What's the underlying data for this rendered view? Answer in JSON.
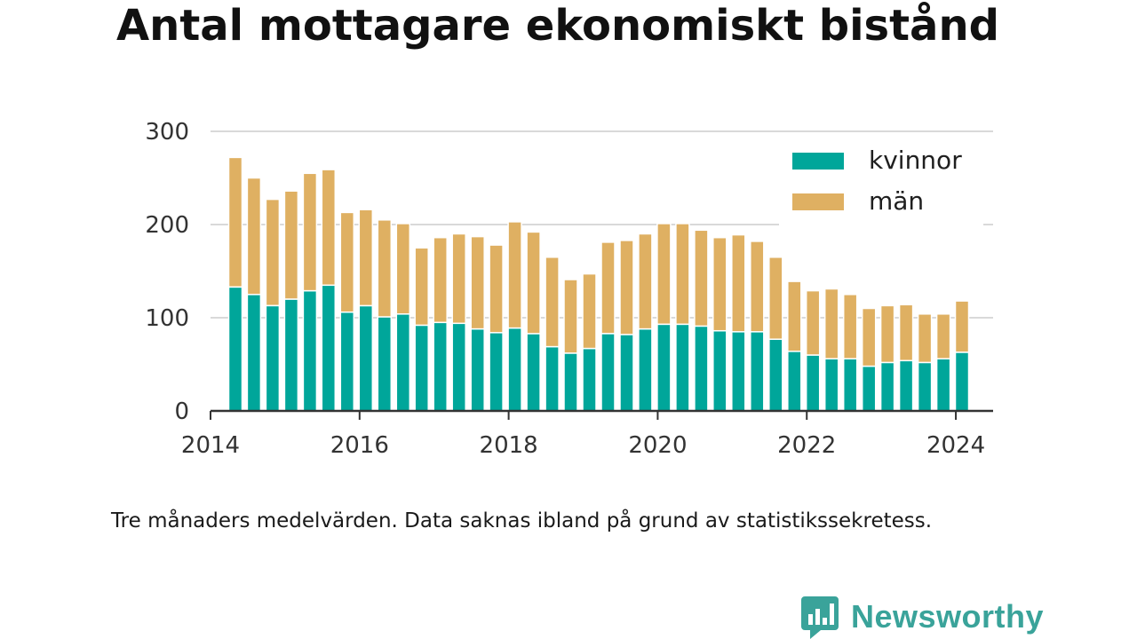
{
  "title": "Antal mottagare ekonomiskt bistånd",
  "note": "Tre månaders medelvärden. Data saknas ibland på grund av statistikssekretess.",
  "brand": {
    "name": "Newsworthy",
    "color": "#3aa39a"
  },
  "colors": {
    "kvinnor": "#00a69a",
    "man": "#dfb062",
    "grid": "#d9d9d9",
    "axis": "#333333"
  },
  "chart_data": {
    "type": "bar",
    "stacked": true,
    "title": "Antal mottagare ekonomiskt bistånd",
    "xlabel": "",
    "ylabel": "",
    "ylim": [
      0,
      300
    ],
    "yticks": [
      0,
      100,
      200,
      300
    ],
    "xticks": [
      "2014",
      "2016",
      "2018",
      "2020",
      "2022",
      "2024"
    ],
    "xlim": [
      "2014-01",
      "2024-07"
    ],
    "legend_position": "top-right",
    "categories": [
      "2014-05",
      "2014-08",
      "2014-11",
      "2015-02",
      "2015-05",
      "2015-08",
      "2015-11",
      "2016-02",
      "2016-05",
      "2016-08",
      "2016-11",
      "2017-02",
      "2017-05",
      "2017-08",
      "2017-11",
      "2018-02",
      "2018-05",
      "2018-08",
      "2018-11",
      "2019-02",
      "2019-05",
      "2019-08",
      "2019-11",
      "2020-02",
      "2020-05",
      "2020-08",
      "2020-11",
      "2021-02",
      "2021-05",
      "2021-08",
      "2021-11",
      "2022-02",
      "2022-05",
      "2022-08",
      "2022-11",
      "2023-02",
      "2023-05",
      "2023-08",
      "2023-11",
      "2024-02"
    ],
    "series": [
      {
        "name": "kvinnor",
        "values": [
          133,
          125,
          113,
          120,
          129,
          135,
          106,
          113,
          101,
          104,
          92,
          95,
          94,
          88,
          84,
          89,
          83,
          69,
          62,
          67,
          83,
          82,
          88,
          93,
          93,
          91,
          86,
          85,
          85,
          77,
          64,
          60,
          56,
          56,
          48,
          52,
          54,
          52,
          56,
          63
        ]
      },
      {
        "name": "män",
        "values": [
          139,
          125,
          114,
          116,
          126,
          124,
          107,
          103,
          104,
          97,
          83,
          91,
          96,
          99,
          94,
          114,
          109,
          96,
          79,
          80,
          98,
          101,
          102,
          108,
          108,
          103,
          100,
          104,
          97,
          88,
          75,
          69,
          75,
          69,
          62,
          61,
          60,
          52,
          48,
          55
        ]
      }
    ]
  }
}
